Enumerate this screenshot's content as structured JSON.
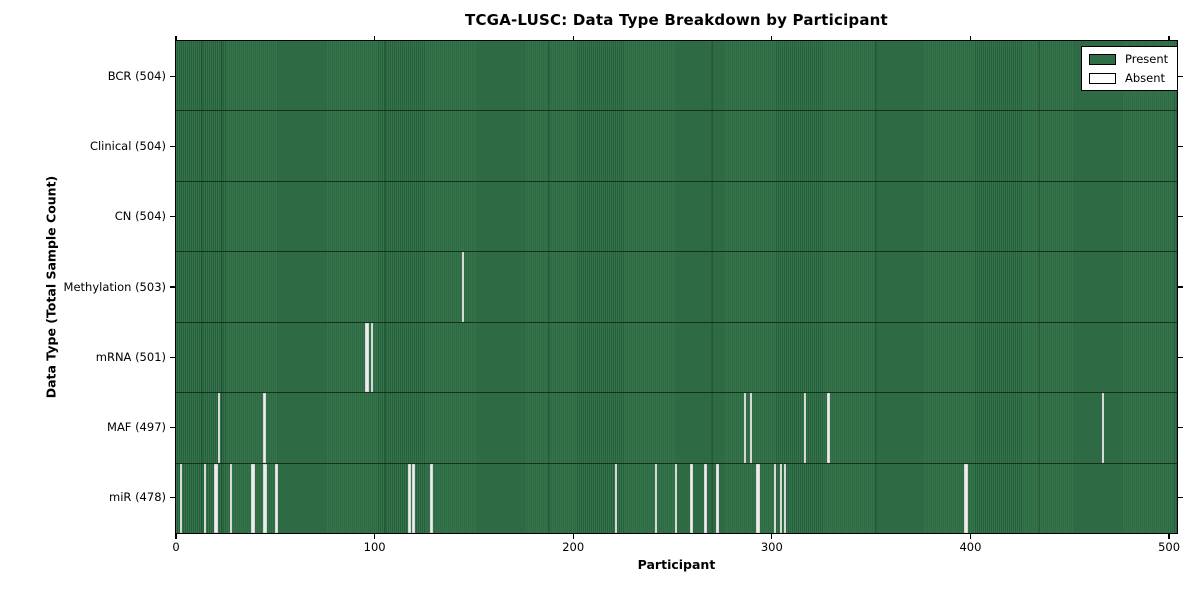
{
  "title": "TCGA-LUSC: Data Type Breakdown by Participant",
  "chart_data": {
    "type": "heatmap",
    "title": "TCGA-LUSC: Data Type Breakdown by Participant",
    "xlabel": "Participant",
    "ylabel": "Data Type (Total Sample Count)",
    "xlim": [
      0,
      504
    ],
    "x_ticks": [
      0,
      100,
      200,
      300,
      400,
      500
    ],
    "total_participants": 504,
    "grid": "off",
    "legend_position": "upper right",
    "legend_entries": [
      {
        "label": "Present",
        "color": "#2e6d45"
      },
      {
        "label": "Absent",
        "color": "#ffffff"
      }
    ],
    "rows": [
      {
        "name": "BCR",
        "label": "BCR (504)",
        "count": 504,
        "absent": []
      },
      {
        "name": "Clinical",
        "label": "Clinical (504)",
        "count": 504,
        "absent": []
      },
      {
        "name": "CN",
        "label": "CN (504)",
        "count": 504,
        "absent": []
      },
      {
        "name": "Methylation",
        "label": "Methylation (503)",
        "count": 503,
        "absent": [
          144
        ]
      },
      {
        "name": "mRNA",
        "label": "mRNA (501)",
        "count": 501,
        "absent": [
          95,
          96,
          98
        ]
      },
      {
        "name": "MAF",
        "label": "MAF (497)",
        "count": 497,
        "absent": [
          21,
          44,
          286,
          289,
          316,
          328,
          466
        ]
      },
      {
        "name": "miR",
        "label": "miR (478)",
        "count": 478,
        "absent": [
          2,
          14,
          19,
          20,
          27,
          38,
          39,
          44,
          45,
          50,
          117,
          119,
          128,
          221,
          241,
          251,
          259,
          266,
          272,
          292,
          293,
          301,
          304,
          306,
          397,
          398
        ]
      }
    ],
    "colors": {
      "present": "#2e6d45",
      "present_stripe_light": "#35734b",
      "present_stripe_dark": "#27603c",
      "absent": "#ededed",
      "row_separator": "#14301f",
      "axis": "#000000",
      "background": "#ffffff"
    }
  }
}
